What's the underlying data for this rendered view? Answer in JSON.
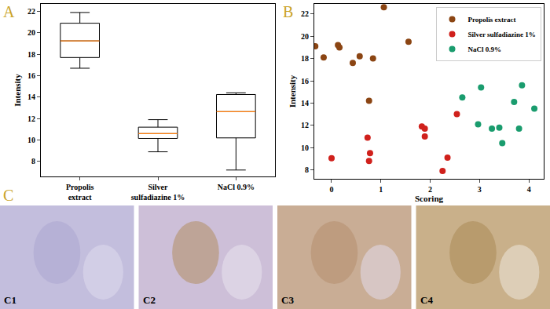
{
  "chart_data": [
    {
      "type": "box",
      "title": "A",
      "categories": [
        "Propolis\nextract",
        "Silver\nsulfadiazine 1%",
        "NaCl 0.9%"
      ],
      "min": [
        16.7,
        8.9,
        7.2
      ],
      "q1": [
        17.7,
        10.15,
        10.2
      ],
      "median": [
        19.25,
        10.6,
        12.65
      ],
      "q3": [
        20.9,
        11.2,
        14.25
      ],
      "max": [
        21.9,
        11.9,
        14.4
      ],
      "y_label": "Intensity",
      "ylim": [
        6.6,
        22.7
      ],
      "yticks": [
        8,
        10,
        12,
        14,
        16,
        18,
        20,
        22
      ],
      "grid": false
    },
    {
      "type": "scatter",
      "title": "B",
      "x_label": "Scoring",
      "y_label": "Intensity",
      "xlim": [
        -0.35,
        4.3
      ],
      "xticks": [
        0,
        1,
        2,
        3,
        4
      ],
      "ylim": [
        7.2,
        22.9
      ],
      "yticks": [
        8,
        10,
        12,
        14,
        16,
        18,
        20,
        22
      ],
      "legend": "upper right",
      "grid": false,
      "series": [
        {
          "name": "Propolis extract",
          "color": "#8b4513",
          "x": [
            -0.33,
            -0.16,
            0.13,
            0.16,
            0.43,
            0.57,
            0.84,
            0.76,
            1.06,
            1.56
          ],
          "values": [
            19.1,
            18.1,
            19.2,
            19.0,
            17.6,
            18.2,
            18.0,
            14.2,
            22.6,
            19.5
          ]
        },
        {
          "name": "Silver sulfadiazine 1%",
          "color": "#d0211c",
          "x": [
            0,
            0.73,
            0.76,
            0.78,
            1.83,
            1.89,
            1.89,
            2.25,
            2.35,
            2.54
          ],
          "values": [
            9.05,
            10.9,
            8.8,
            9.5,
            11.9,
            11.7,
            11.0,
            7.9,
            9.1,
            13.0
          ]
        },
        {
          "name": "NaCl 0.9%",
          "color": "#1a9c6e",
          "x": [
            2.65,
            2.97,
            3.03,
            3.25,
            3.4,
            3.46,
            3.7,
            3.8,
            3.86,
            4.11
          ],
          "values": [
            14.5,
            12.1,
            15.4,
            11.7,
            11.8,
            10.4,
            14.1,
            11.7,
            15.6,
            13.5
          ]
        }
      ]
    }
  ],
  "images": {
    "title": "C",
    "labels": [
      "C1",
      "C2",
      "C3",
      "C4"
    ]
  }
}
